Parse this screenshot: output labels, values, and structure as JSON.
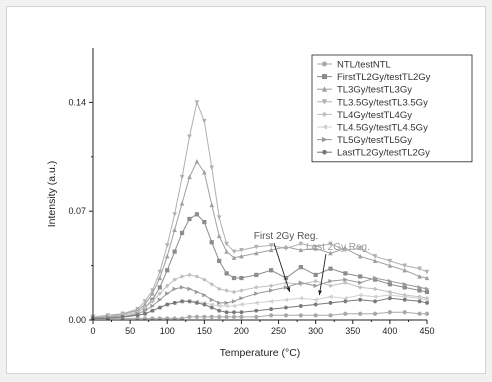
{
  "chart_data": {
    "type": "line",
    "xlabel": "Temperature (°C)",
    "ylabel": "Intensity (a.u.)",
    "xlim": [
      0,
      450
    ],
    "ylim": [
      0,
      0.175
    ],
    "x_ticks": [
      0,
      50,
      100,
      150,
      200,
      250,
      300,
      350,
      400,
      450
    ],
    "y_ticks": [
      0.0,
      0.07,
      0.14
    ],
    "y_tick_labels": [
      "0.00",
      "0.07",
      "0.14"
    ],
    "grid": false,
    "legend_position": "top-right",
    "x": [
      0,
      20,
      40,
      60,
      70,
      80,
      90,
      100,
      110,
      120,
      130,
      140,
      150,
      160,
      170,
      180,
      190,
      200,
      220,
      240,
      260,
      280,
      300,
      320,
      340,
      360,
      380,
      400,
      420,
      440,
      450
    ],
    "series": [
      {
        "name": "NTL/testNTL",
        "color": "#a8a8a8",
        "marker": "circle",
        "values": [
          0.001,
          0.001,
          0.001,
          0.001,
          0.001,
          0.001,
          0.001,
          0.001,
          0.001,
          0.001,
          0.002,
          0.002,
          0.002,
          0.002,
          0.002,
          0.002,
          0.002,
          0.002,
          0.002,
          0.003,
          0.003,
          0.003,
          0.003,
          0.003,
          0.004,
          0.004,
          0.004,
          0.005,
          0.005,
          0.004,
          0.004
        ]
      },
      {
        "name": "FirstTL2Gy/testTL2Gy",
        "color": "#8c8c8c",
        "marker": "square",
        "values": [
          0.002,
          0.002,
          0.003,
          0.005,
          0.008,
          0.013,
          0.021,
          0.032,
          0.044,
          0.056,
          0.065,
          0.068,
          0.063,
          0.05,
          0.038,
          0.03,
          0.027,
          0.027,
          0.029,
          0.032,
          0.027,
          0.034,
          0.029,
          0.033,
          0.03,
          0.028,
          0.026,
          0.023,
          0.021,
          0.019,
          0.018
        ]
      },
      {
        "name": "TL3Gy/testTL3Gy",
        "color": "#a0a0a0",
        "marker": "triangle-up",
        "values": [
          0.002,
          0.002,
          0.004,
          0.006,
          0.01,
          0.017,
          0.027,
          0.041,
          0.058,
          0.075,
          0.092,
          0.102,
          0.095,
          0.074,
          0.054,
          0.044,
          0.04,
          0.041,
          0.043,
          0.045,
          0.047,
          0.045,
          0.046,
          0.043,
          0.046,
          0.041,
          0.038,
          0.035,
          0.032,
          0.028,
          0.027
        ]
      },
      {
        "name": "TL3.5Gy/testTL3.5Gy",
        "color": "#b0b0b0",
        "marker": "triangle-down",
        "values": [
          0.002,
          0.003,
          0.004,
          0.007,
          0.012,
          0.019,
          0.031,
          0.048,
          0.068,
          0.092,
          0.118,
          0.14,
          0.128,
          0.098,
          0.066,
          0.049,
          0.044,
          0.045,
          0.047,
          0.048,
          0.046,
          0.049,
          0.047,
          0.049,
          0.045,
          0.046,
          0.041,
          0.038,
          0.035,
          0.033,
          0.031
        ]
      },
      {
        "name": "TL4Gy/testTL4Gy",
        "color": "#c0c0c0",
        "marker": "diamond",
        "values": [
          0.002,
          0.002,
          0.003,
          0.005,
          0.008,
          0.012,
          0.017,
          0.022,
          0.026,
          0.028,
          0.029,
          0.028,
          0.026,
          0.023,
          0.02,
          0.019,
          0.018,
          0.019,
          0.021,
          0.022,
          0.024,
          0.023,
          0.025,
          0.022,
          0.024,
          0.021,
          0.02,
          0.018,
          0.016,
          0.015,
          0.014
        ]
      },
      {
        "name": "TL4.5Gy/testTL4.5Gy",
        "color": "#d0d0d0",
        "marker": "triangle-left",
        "values": [
          0.001,
          0.002,
          0.002,
          0.003,
          0.004,
          0.006,
          0.008,
          0.01,
          0.011,
          0.012,
          0.012,
          0.012,
          0.011,
          0.01,
          0.009,
          0.009,
          0.009,
          0.01,
          0.011,
          0.012,
          0.013,
          0.014,
          0.013,
          0.015,
          0.014,
          0.016,
          0.015,
          0.016,
          0.015,
          0.014,
          0.013
        ]
      },
      {
        "name": "TL5Gy/testTL5Gy",
        "color": "#9a9a9a",
        "marker": "triangle-right",
        "values": [
          0.001,
          0.002,
          0.002,
          0.004,
          0.006,
          0.009,
          0.013,
          0.017,
          0.02,
          0.021,
          0.02,
          0.018,
          0.016,
          0.013,
          0.011,
          0.011,
          0.012,
          0.014,
          0.017,
          0.019,
          0.021,
          0.024,
          0.022,
          0.025,
          0.026,
          0.024,
          0.027,
          0.025,
          0.023,
          0.021,
          0.02
        ]
      },
      {
        "name": "LastTL2Gy/testTL2Gy",
        "color": "#787878",
        "marker": "hexagon",
        "values": [
          0.001,
          0.001,
          0.002,
          0.003,
          0.004,
          0.006,
          0.008,
          0.01,
          0.011,
          0.012,
          0.012,
          0.011,
          0.01,
          0.008,
          0.006,
          0.005,
          0.005,
          0.005,
          0.006,
          0.007,
          0.008,
          0.009,
          0.01,
          0.011,
          0.012,
          0.013,
          0.012,
          0.014,
          0.013,
          0.012,
          0.011
        ]
      }
    ],
    "annotations": [
      {
        "text": "First 2Gy Reg.",
        "color": "#555555",
        "x": 260,
        "y": 0.052,
        "arrow_to": [
          265,
          0.018
        ]
      },
      {
        "text": "Last 2Gy Reg.",
        "color": "#9a9a9a",
        "x": 330,
        "y": 0.045,
        "arrow_to": [
          305,
          0.016
        ]
      }
    ]
  }
}
